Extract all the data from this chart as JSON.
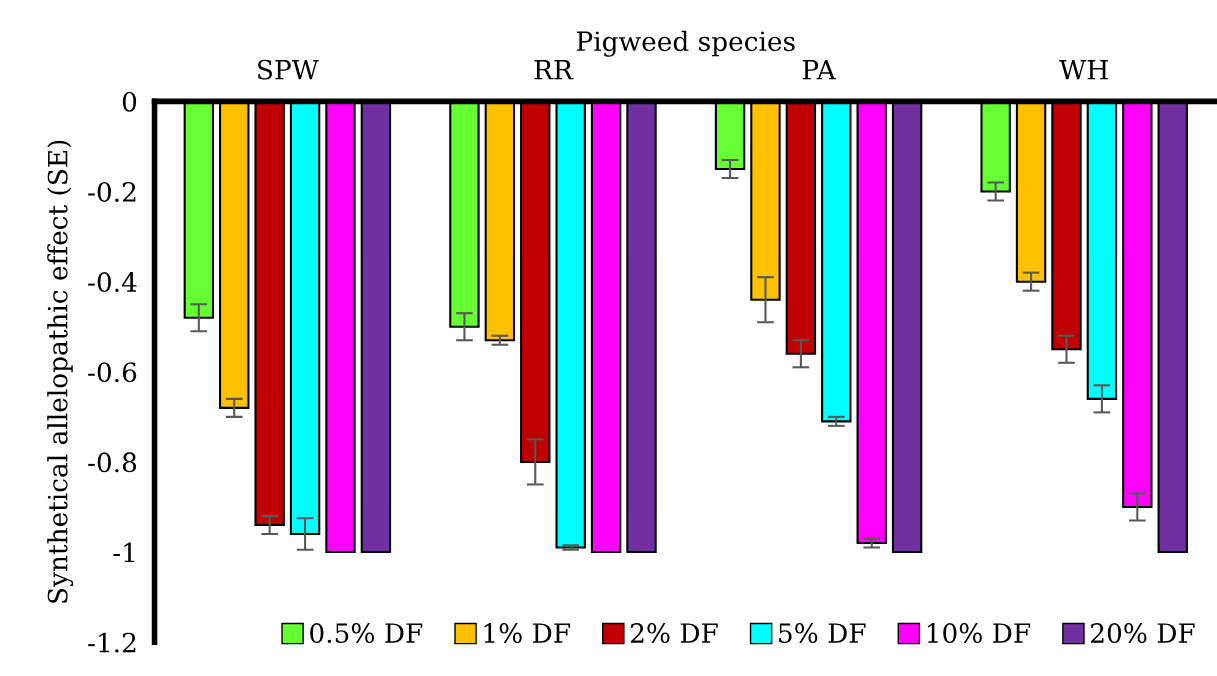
{
  "chart_data": {
    "type": "bar",
    "xlabel": "Pigweed species",
    "ylabel": "Synthetical allelopathic effect (SE)",
    "categories": [
      "SPW",
      "RR",
      "PA",
      "WH"
    ],
    "series": [
      {
        "name": "0.5% DF",
        "color": "#66ff33",
        "values": [
          -0.48,
          -0.5,
          -0.15,
          -0.2
        ],
        "errors": [
          0.03,
          0.03,
          0.02,
          0.02
        ]
      },
      {
        "name": "1% DF",
        "color": "#ffc000",
        "values": [
          -0.68,
          -0.53,
          -0.44,
          -0.4
        ],
        "errors": [
          0.02,
          0.01,
          0.05,
          0.02
        ]
      },
      {
        "name": "2% DF",
        "color": "#c00000",
        "values": [
          -0.94,
          -0.8,
          -0.56,
          -0.55
        ],
        "errors": [
          0.02,
          0.05,
          0.03,
          0.03
        ]
      },
      {
        "name": "5% DF",
        "color": "#00ffff",
        "values": [
          -0.96,
          -0.99,
          -0.71,
          -0.66
        ],
        "errors": [
          0.035,
          0.005,
          0.01,
          0.03
        ]
      },
      {
        "name": "10% DF",
        "color": "#ff00ff",
        "values": [
          -1,
          -1,
          -0.98,
          -0.9
        ],
        "errors": [
          null,
          null,
          0.01,
          0.03
        ]
      },
      {
        "name": "20% DF",
        "color": "#7030a0",
        "values": [
          -1,
          -1,
          -1,
          -1
        ],
        "errors": [
          null,
          null,
          null,
          null
        ]
      }
    ],
    "ylim": [
      -1.2,
      0
    ],
    "yticks": [
      {
        "value": 0,
        "label": "0"
      },
      {
        "value": -0.2,
        "label": "-0.2"
      },
      {
        "value": -0.4,
        "label": "-0.4"
      },
      {
        "value": -0.6,
        "label": "-0.6"
      },
      {
        "value": -0.8,
        "label": "-0.8"
      },
      {
        "value": -1,
        "label": "-1"
      },
      {
        "value": -1.2,
        "label": "-1.2"
      }
    ],
    "grid": false,
    "legend": "bottom"
  }
}
